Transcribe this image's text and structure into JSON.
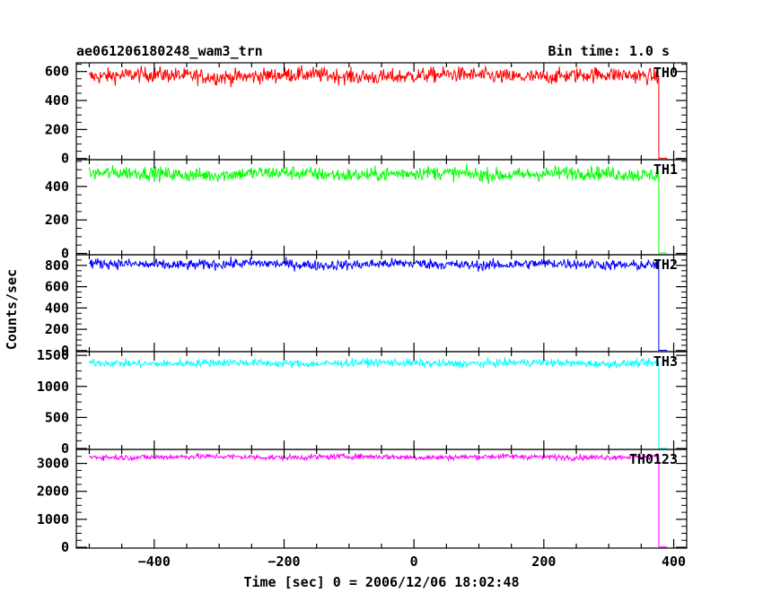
{
  "chart_data": {
    "type": "line",
    "title": "ae061206180248_wam3_trn",
    "subtitle": "Bin time: 1.0 s",
    "xlabel": "Time [sec] 0 = 2006/12/06 18:02:48",
    "ylabel": "Counts/sec",
    "xlim": [
      -520,
      420
    ],
    "x_ticks": [
      -400,
      -200,
      0,
      200,
      400
    ],
    "x_tick_labels": [
      "−400",
      "−200",
      "0",
      "200",
      "400"
    ],
    "grid": false,
    "drop_time": 377,
    "panels": [
      {
        "name": "TH0",
        "color": "#ff0000",
        "ylim": [
          -8,
          660
        ],
        "y_ticks": [
          0,
          200,
          400,
          600
        ],
        "y_tick_labels": [
          "0",
          "200",
          "400",
          "600"
        ],
        "data_range": [
          -500,
          390
        ],
        "mean": 570,
        "noise": 38,
        "end_level": 2
      },
      {
        "name": "TH1",
        "color": "#00ff00",
        "ylim": [
          -8,
          560
        ],
        "y_ticks": [
          0,
          200,
          400
        ],
        "y_tick_labels": [
          "0",
          "200",
          "400"
        ],
        "data_range": [
          -500,
          390
        ],
        "mean": 475,
        "noise": 30,
        "end_level": 2
      },
      {
        "name": "TH2",
        "color": "#0000ff",
        "ylim": [
          -10,
          900
        ],
        "y_ticks": [
          0,
          200,
          400,
          600,
          800
        ],
        "y_tick_labels": [
          "0",
          "200",
          "400",
          "600",
          "800"
        ],
        "data_range": [
          -500,
          390
        ],
        "mean": 810,
        "noise": 35,
        "end_level": 3
      },
      {
        "name": "TH3",
        "color": "#00ffff",
        "ylim": [
          -15,
          1560
        ],
        "y_ticks": [
          0,
          500,
          1000,
          1500
        ],
        "y_tick_labels": [
          "0",
          "500",
          "1000",
          "1500"
        ],
        "data_range": [
          -500,
          390
        ],
        "mean": 1375,
        "noise": 45,
        "end_level": 4
      },
      {
        "name": "TH0123",
        "color": "#ff00ff",
        "ylim": [
          -30,
          3500
        ],
        "y_ticks": [
          0,
          1000,
          2000,
          3000
        ],
        "y_tick_labels": [
          "0",
          "1000",
          "2000",
          "3000"
        ],
        "data_range": [
          -500,
          390
        ],
        "mean": 3230,
        "noise": 70,
        "end_level": 10
      }
    ]
  }
}
